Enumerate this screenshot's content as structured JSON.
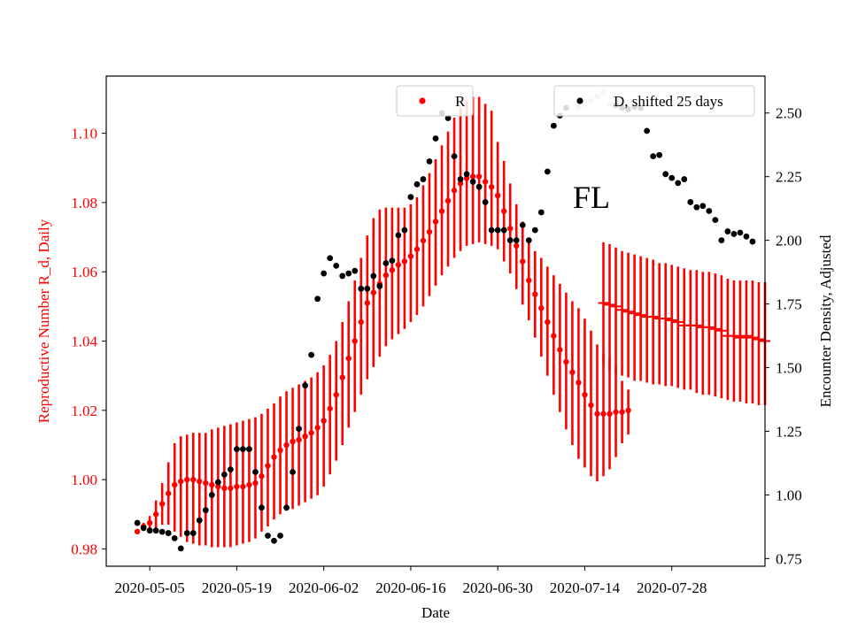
{
  "chart_data": {
    "type": "scatter",
    "annotation": "FL",
    "xlabel": "Date",
    "ylabel_left": "Reproductive Number R_d, Daily",
    "ylabel_right": "Encounter Density, Adjusted",
    "x_ticks": [
      "2020-05-05",
      "2020-05-19",
      "2020-06-02",
      "2020-06-16",
      "2020-06-30",
      "2020-07-14",
      "2020-07-28"
    ],
    "x_range": [
      "2020-04-28",
      "2020-08-12"
    ],
    "y_left_range": [
      0.975,
      1.1165
    ],
    "y_left_ticks": [
      0.98,
      1.0,
      1.02,
      1.04,
      1.06,
      1.08,
      1.1
    ],
    "y_right_range": [
      0.72,
      2.645
    ],
    "y_right_ticks": [
      0.75,
      1.0,
      1.25,
      1.5,
      1.75,
      2.0,
      2.25,
      2.5
    ],
    "grid": false,
    "legend_R": {
      "label": "R",
      "placement": "top-center"
    },
    "legend_D": {
      "label": "D, shifted 25 days",
      "placement": "top-right"
    },
    "colors": {
      "R": "#ff0000",
      "D": "#000000",
      "D_faded": "#c0c0c0"
    },
    "series_R": {
      "name": "R",
      "start_date": "2020-05-03",
      "values": [
        0.985,
        0.9865,
        0.9875,
        0.99,
        0.993,
        0.996,
        0.9985,
        0.9995,
        1.0,
        1.0,
        0.9995,
        0.999,
        0.9985,
        0.998,
        0.9975,
        0.9975,
        0.998,
        0.998,
        0.9985,
        0.999,
        1.001,
        1.004,
        1.0065,
        1.0085,
        1.01,
        1.011,
        1.0115,
        1.0125,
        1.0135,
        1.015,
        1.017,
        1.0205,
        1.0245,
        1.0295,
        1.035,
        1.04,
        1.0455,
        1.051,
        1.054,
        1.0565,
        1.059,
        1.0605,
        1.062,
        1.063,
        1.0645,
        1.0665,
        1.069,
        1.0715,
        1.0745,
        1.0775,
        1.0805,
        1.0835,
        1.0855,
        1.087,
        1.0875,
        1.0875,
        1.086,
        1.0845,
        1.082,
        1.0775,
        1.0725,
        1.0675,
        1.063,
        1.0575,
        1.0535,
        1.0495,
        1.0455,
        1.0415,
        1.0375,
        1.034,
        1.031,
        1.028,
        1.0245,
        1.0215,
        1.019,
        1.019,
        1.019,
        1.0195,
        1.0195,
        1.02
      ],
      "lower": [
        0.9848,
        0.9855,
        0.9855,
        0.986,
        0.987,
        0.987,
        0.985,
        0.9835,
        0.982,
        0.9815,
        0.981,
        0.981,
        0.9805,
        0.9805,
        0.9805,
        0.9805,
        0.981,
        0.9815,
        0.982,
        0.983,
        0.985,
        0.9865,
        0.9885,
        0.99,
        0.991,
        0.9915,
        0.9925,
        0.9935,
        0.9945,
        0.9955,
        0.998,
        1.0015,
        1.0055,
        1.01,
        1.015,
        1.0195,
        1.0245,
        1.029,
        1.0325,
        1.0355,
        1.0385,
        1.0405,
        1.042,
        1.0435,
        1.0455,
        1.0475,
        1.05,
        1.053,
        1.056,
        1.059,
        1.0615,
        1.064,
        1.066,
        1.0675,
        1.068,
        1.0685,
        1.068,
        1.0675,
        1.0665,
        1.063,
        1.0595,
        1.055,
        1.0505,
        1.046,
        1.041,
        1.0355,
        1.03,
        1.0245,
        1.0195,
        1.0145,
        1.01,
        1.006,
        1.0035,
        1.001,
        0.9995,
        1.001,
        1.003,
        1.0065,
        1.0105,
        1.013
      ],
      "upper": [
        0.9852,
        0.9875,
        0.9895,
        0.994,
        0.999,
        1.005,
        1.0105,
        1.0125,
        1.013,
        1.0135,
        1.0135,
        1.0135,
        1.0145,
        1.015,
        1.0155,
        1.016,
        1.0165,
        1.017,
        1.0175,
        1.018,
        1.019,
        1.0205,
        1.022,
        1.024,
        1.0255,
        1.0265,
        1.0275,
        1.0285,
        1.0295,
        1.031,
        1.033,
        1.036,
        1.04,
        1.0455,
        1.0515,
        1.0575,
        1.064,
        1.0705,
        1.0755,
        1.078,
        1.0785,
        1.0785,
        1.0785,
        1.0785,
        1.0795,
        1.0815,
        1.085,
        1.0885,
        1.0925,
        1.0965,
        1.1005,
        1.1045,
        1.1075,
        1.1095,
        1.1105,
        1.1105,
        1.1085,
        1.1065,
        1.0975,
        1.092,
        1.0855,
        1.0795,
        1.0745,
        1.0695,
        1.066,
        1.064,
        1.0615,
        1.059,
        1.0565,
        1.054,
        1.0515,
        1.0495,
        1.0465,
        1.043,
        1.039,
        1.0365,
        1.035,
        1.033,
        1.0285,
        1.026
      ]
    },
    "series_R_late": {
      "name": "",
      "start_date": "2020-07-17",
      "values": [
        1.051,
        1.0505,
        1.05,
        1.049,
        1.0485,
        1.048,
        1.0475,
        1.047,
        1.047,
        1.0465,
        1.0465,
        1.046,
        1.0455,
        1.0445,
        1.0445,
        1.0445,
        1.044,
        1.044,
        1.0435,
        1.043,
        1.0415,
        1.0415,
        1.041,
        1.0415,
        1.041,
        1.0405,
        1.04
      ],
      "lower": [
        1.033,
        1.0315,
        1.0305,
        1.03,
        1.0295,
        1.0285,
        1.0285,
        1.028,
        1.0275,
        1.0275,
        1.027,
        1.027,
        1.0265,
        1.026,
        1.026,
        1.025,
        1.0245,
        1.0245,
        1.024,
        1.0235,
        1.023,
        1.0225,
        1.0225,
        1.022,
        1.022,
        1.0215,
        1.0215
      ],
      "upper": [
        1.0685,
        1.068,
        1.067,
        1.066,
        1.0655,
        1.065,
        1.0645,
        1.064,
        1.0635,
        1.0625,
        1.0625,
        1.062,
        1.0615,
        1.061,
        1.0605,
        1.0605,
        1.06,
        1.06,
        1.0595,
        1.059,
        1.058,
        1.0575,
        1.0575,
        1.0575,
        1.0575,
        1.057,
        1.057
      ]
    },
    "series_D": {
      "name": "D, shifted 25 days",
      "start_date": "2020-05-03",
      "values": [
        0.89,
        0.87,
        0.86,
        0.86,
        0.855,
        0.85,
        0.83,
        0.79,
        0.85,
        0.85,
        0.9,
        0.94,
        1.0,
        1.05,
        1.08,
        1.1,
        1.18,
        1.18,
        1.18,
        1.09,
        0.95,
        0.84,
        0.82,
        0.84,
        0.95,
        1.09,
        1.26,
        1.43,
        1.55,
        1.77,
        1.87,
        1.93,
        1.9,
        1.86,
        1.87,
        1.88,
        1.81,
        1.81,
        1.86,
        1.82,
        1.91,
        1.92,
        2.02,
        2.04,
        2.17,
        2.22,
        2.24,
        2.31,
        2.4,
        2.5,
        2.48,
        2.33,
        2.24,
        2.26,
        2.23,
        2.21,
        2.15,
        2.04,
        2.04,
        2.04,
        2.0,
        2.0,
        2.06,
        2.0,
        2.04,
        2.11,
        2.27,
        2.45,
        2.49,
        2.52
      ],
      "faded_start_date": "2020-07-13",
      "faded_values": [
        2.52,
        2.535,
        2.55,
        2.565,
        2.58,
        2.535
      ],
      "late_start_date": "2020-07-19",
      "late_values": [
        2.53,
        2.52,
        2.515,
        2.525,
        2.52,
        2.43,
        2.33,
        2.335,
        2.26,
        2.245,
        2.225,
        2.24,
        2.15,
        2.13,
        2.135,
        2.115,
        2.08,
        2.0,
        2.035,
        2.025,
        2.03,
        2.015,
        1.995
      ]
    }
  }
}
